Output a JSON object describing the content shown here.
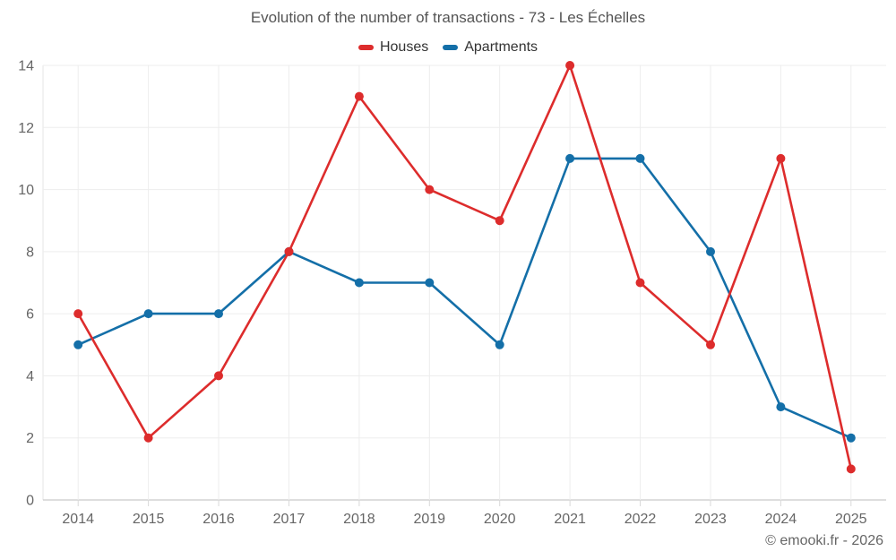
{
  "chart_data": {
    "type": "line",
    "title": "Evolution of the number of transactions - 73 - Les Échelles",
    "categories": [
      "2014",
      "2015",
      "2016",
      "2017",
      "2018",
      "2019",
      "2020",
      "2021",
      "2022",
      "2023",
      "2024",
      "2025"
    ],
    "series": [
      {
        "name": "Houses",
        "color": "#dd2c2c",
        "values": [
          6,
          2,
          4,
          8,
          13,
          10,
          9,
          14,
          7,
          5,
          11,
          1
        ]
      },
      {
        "name": "Apartments",
        "color": "#146fa8",
        "values": [
          5,
          6,
          6,
          8,
          7,
          7,
          5,
          11,
          11,
          8,
          3,
          2
        ]
      }
    ],
    "xlabel": "",
    "ylabel": "",
    "ylim": [
      0,
      14
    ],
    "ytick_step": 2,
    "grid": true,
    "legend_position": "top"
  },
  "footer": {
    "copyright": "© emooki.fr - 2026"
  },
  "colors": {
    "houses": "#dd2c2c",
    "apartments": "#146fa8",
    "gridline": "#ededed",
    "axis_line": "#c9c9c9",
    "tick": "#d8d8d8",
    "y_axis_line": "#e6e6e6",
    "title_text": "#555555",
    "axis_text": "#666666"
  }
}
